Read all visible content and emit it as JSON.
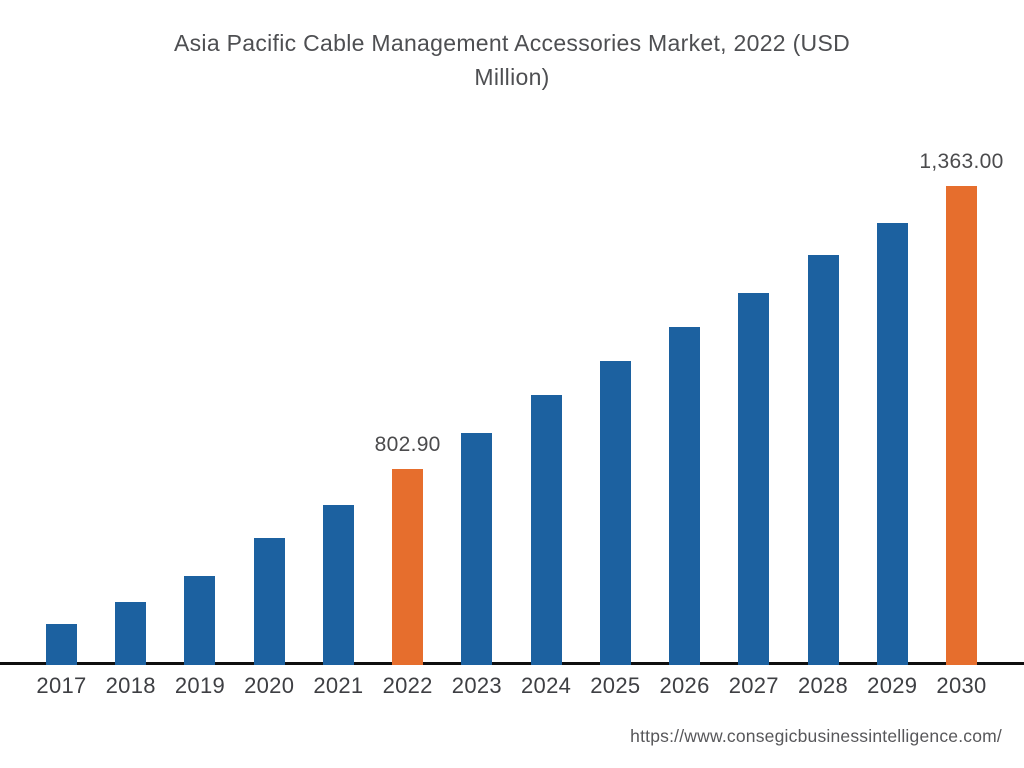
{
  "header": {
    "title_lines": [
      "Asia Pacific Cable Management Accessories Market, 2022 (USD",
      "Million)"
    ]
  },
  "chart_data": {
    "type": "bar",
    "title": "Asia Pacific Cable Management Accessories Market, 2022 (USD Million)",
    "xlabel": "",
    "ylabel": "USD Million",
    "categories": [
      "2017",
      "2018",
      "2019",
      "2020",
      "2021",
      "2022",
      "2023",
      "2024",
      "2025",
      "2026",
      "2027",
      "2028",
      "2029",
      "2030"
    ],
    "values": [
      495,
      539,
      590,
      666,
      731,
      802.9,
      874,
      950,
      1017,
      1083,
      1152,
      1226,
      1290,
      1363
    ],
    "labeled_values": {
      "2022": "802.90",
      "2030": "1,363.00"
    },
    "data_labels": [
      {
        "index": 5,
        "text": "802.90"
      },
      {
        "index": 13,
        "text": "1,363.00"
      }
    ],
    "highlight_indices": [
      5,
      13
    ],
    "colors": {
      "bar": "#1c61a0",
      "highlight": "#e66e2d",
      "axis_line": "#0f0f0f",
      "title_text": "#4e4f52",
      "axis_label_text": "#3e3f43",
      "value_label_text": "#4b4b4d",
      "url_text": "#57575a"
    },
    "ylim": [
      414,
      1500
    ],
    "grid": false,
    "legend": false
  },
  "footer": {
    "source_url": "https://www.consegicbusinessintelligence.com/"
  }
}
